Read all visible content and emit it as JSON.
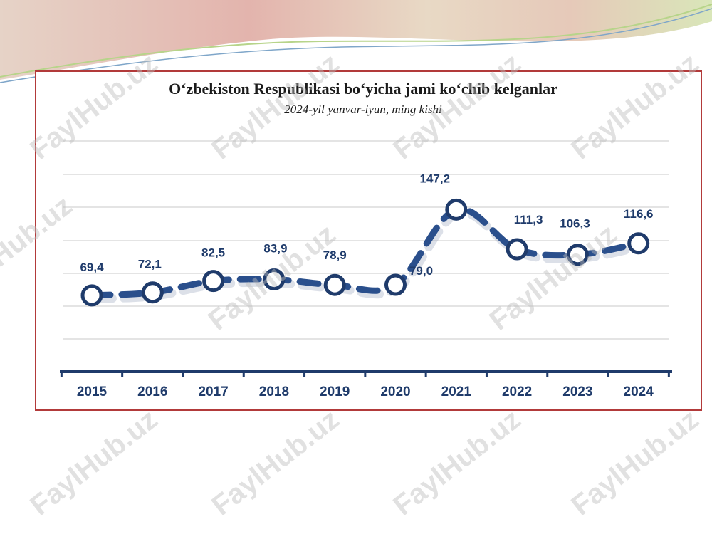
{
  "watermark": "FaylHub.uz",
  "colors": {
    "line": "#2a4f8c",
    "marker_fill": "#ffffff",
    "marker_stroke": "#1f3b6b",
    "label": "#1f3b6b",
    "frame": "#b23a3a",
    "grid": "#dcdcdc"
  },
  "chart_data": {
    "type": "line",
    "title": "O‘zbekiston Respublikasi bo‘yicha jami ko‘chib kelganlar",
    "subtitle": "2024-yil yanvar-iyun, ming kishi",
    "xlabel": "",
    "ylabel": "",
    "categories": [
      "2015",
      "2016",
      "2017",
      "2018",
      "2019",
      "2020",
      "2021",
      "2022",
      "2023",
      "2024"
    ],
    "values": [
      69.4,
      72.1,
      82.5,
      83.9,
      78.9,
      79.0,
      147.2,
      111.3,
      106.3,
      116.6
    ],
    "value_labels": [
      "69,4",
      "72,1",
      "82,5",
      "83,9",
      "78,9",
      "79,0",
      "147,2",
      "111,3",
      "106,3",
      "116,6"
    ],
    "line_style": "dashed",
    "smooth": true,
    "grid": true,
    "legend": "none"
  }
}
